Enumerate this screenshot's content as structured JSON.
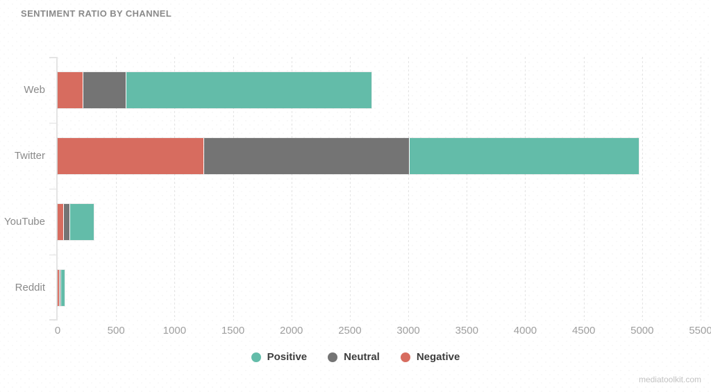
{
  "title": "SENTIMENT RATIO BY CHANNEL",
  "watermark": "mediatoolkit.com",
  "colors": {
    "positive": "#63bca9",
    "neutral": "#747474",
    "negative": "#d76c5f"
  },
  "chart_data": {
    "type": "bar",
    "orientation": "horizontal",
    "stacked": true,
    "title": "SENTIMENT RATIO BY CHANNEL",
    "categories": [
      "Web",
      "Twitter",
      "YouTube",
      "Reddit"
    ],
    "series": [
      {
        "name": "Negative",
        "color": "#d76c5f",
        "values": [
          215,
          1250,
          45,
          10
        ]
      },
      {
        "name": "Neutral",
        "color": "#747474",
        "values": [
          360,
          1750,
          50,
          10
        ]
      },
      {
        "name": "Positive",
        "color": "#63bca9",
        "values": [
          2100,
          1960,
          200,
          25
        ]
      }
    ],
    "totals": [
      2675,
      4960,
      295,
      45
    ],
    "xlabel": "",
    "ylabel": "",
    "xlim": [
      0,
      5500
    ],
    "xticks": [
      0,
      500,
      1000,
      1500,
      2000,
      2500,
      3000,
      3500,
      4000,
      4500,
      5000,
      5500
    ],
    "grid": "vertical-dotted",
    "legend": [
      {
        "label": "Positive",
        "color": "#63bca9"
      },
      {
        "label": "Neutral",
        "color": "#747474"
      },
      {
        "label": "Negative",
        "color": "#d76c5f"
      }
    ],
    "legend_position": "bottom-center"
  }
}
